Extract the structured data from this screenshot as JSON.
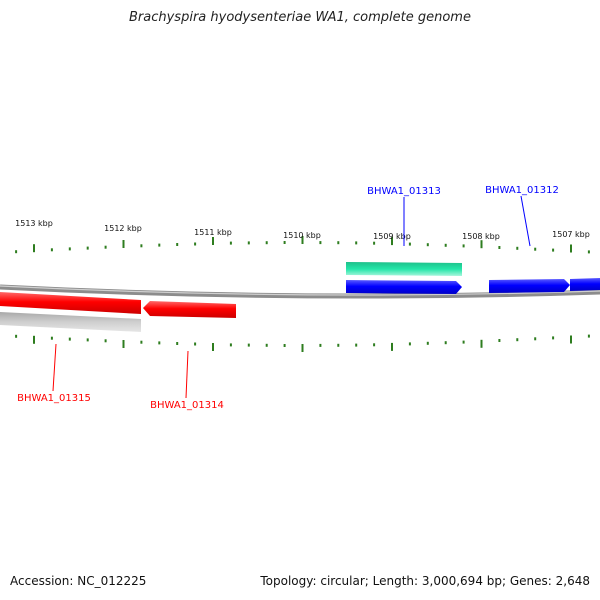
{
  "title": "Brachyspira hyodysenteriae WA1, complete genome",
  "footer": {
    "accession": "Accession: NC_012225",
    "topology": "Topology: circular; Length: 3,000,694 bp; Genes: 2,648"
  },
  "colors": {
    "backbone": "#8c8c8c",
    "tick": "#2e7d1f",
    "forward_gene": "#0000ff",
    "reverse_gene": "#ff0000",
    "rna_gene": "#20d8a0",
    "pseudo_feature": "#c0c0c0"
  },
  "scale_labels": [
    {
      "kbp": 1513,
      "label": "1513 kbp"
    },
    {
      "kbp": 1512,
      "label": "1512 kbp"
    },
    {
      "kbp": 1511,
      "label": "1511 kbp"
    },
    {
      "kbp": 1510,
      "label": "1510 kbp"
    },
    {
      "kbp": 1509,
      "label": "1509 kbp"
    },
    {
      "kbp": 1508,
      "label": "1508 kbp"
    },
    {
      "kbp": 1507,
      "label": "1507 kbp"
    }
  ],
  "gene_labels": [
    {
      "text": "BHWA1_01313",
      "strand": "forward"
    },
    {
      "text": "BHWA1_01312",
      "strand": "forward"
    },
    {
      "text": "BHWA1_01315",
      "strand": "reverse"
    },
    {
      "text": "BHWA1_01314",
      "strand": "reverse"
    }
  ]
}
